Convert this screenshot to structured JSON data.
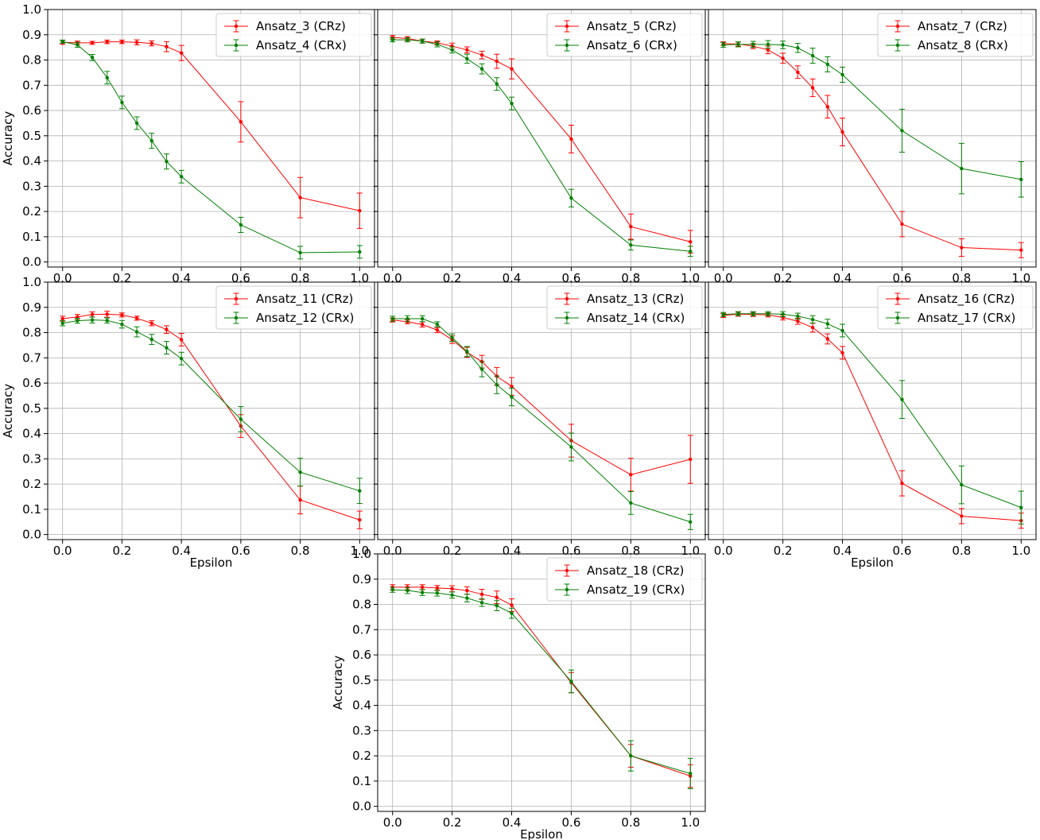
{
  "figure": {
    "x_axis": {
      "ticks": [
        0.0,
        0.2,
        0.4,
        0.6,
        0.8,
        1.0
      ],
      "tick_labels": [
        "0.0",
        "0.2",
        "0.4",
        "0.6",
        "0.8",
        "1.0"
      ]
    },
    "y_axis": {
      "ticks": [
        0.0,
        0.1,
        0.2,
        0.3,
        0.4,
        0.5,
        0.6,
        0.7,
        0.8,
        0.9,
        1.0
      ],
      "tick_labels": [
        "0.0",
        "0.1",
        "0.2",
        "0.3",
        "0.4",
        "0.5",
        "0.6",
        "0.7",
        "0.8",
        "0.9",
        "1.0"
      ]
    },
    "colors": {
      "crz": "#ff0000",
      "crx": "#008000",
      "grid": "#b0b0b0"
    }
  },
  "chart_data": [
    {
      "type": "line",
      "xlabel": "",
      "ylabel": "Accuracy",
      "xlim": [
        -0.05,
        1.05
      ],
      "ylim": [
        -0.02,
        1.0
      ],
      "grid": true,
      "legend": "top-right",
      "show_x_ticklabels": true,
      "show_y_ticklabels": true,
      "x": [
        0.0,
        0.05,
        0.1,
        0.15,
        0.2,
        0.25,
        0.3,
        0.35,
        0.4,
        0.6,
        0.8,
        1.0
      ],
      "series": [
        {
          "name": "Ansatz_3 (CRz)",
          "color": "red",
          "values": [
            0.87,
            0.868,
            0.868,
            0.872,
            0.872,
            0.87,
            0.866,
            0.853,
            0.828,
            0.555,
            0.255,
            0.203
          ],
          "errors": [
            0.008,
            0.007,
            0.006,
            0.007,
            0.007,
            0.01,
            0.01,
            0.02,
            0.03,
            0.08,
            0.08,
            0.07
          ]
        },
        {
          "name": "Ansatz_4 (CRx)",
          "color": "green",
          "values": [
            0.873,
            0.86,
            0.81,
            0.73,
            0.632,
            0.55,
            0.48,
            0.398,
            0.338,
            0.147,
            0.037,
            0.04
          ],
          "errors": [
            0.006,
            0.01,
            0.012,
            0.025,
            0.025,
            0.025,
            0.03,
            0.03,
            0.025,
            0.03,
            0.025,
            0.025
          ]
        }
      ]
    },
    {
      "type": "line",
      "xlabel": "",
      "ylabel": "",
      "xlim": [
        -0.05,
        1.05
      ],
      "ylim": [
        -0.02,
        1.0
      ],
      "grid": true,
      "legend": "top-right",
      "show_x_ticklabels": true,
      "show_y_ticklabels": false,
      "x": [
        0.0,
        0.05,
        0.1,
        0.15,
        0.2,
        0.25,
        0.3,
        0.35,
        0.4,
        0.6,
        0.8,
        1.0
      ],
      "series": [
        {
          "name": "Ansatz_5 (CRz)",
          "color": "red",
          "values": [
            0.89,
            0.885,
            0.875,
            0.868,
            0.855,
            0.84,
            0.82,
            0.795,
            0.765,
            0.487,
            0.14,
            0.08
          ],
          "errors": [
            0.007,
            0.008,
            0.008,
            0.008,
            0.012,
            0.012,
            0.015,
            0.028,
            0.04,
            0.055,
            0.05,
            0.045
          ]
        },
        {
          "name": "Ansatz_6 (CRx)",
          "color": "green",
          "values": [
            0.88,
            0.88,
            0.875,
            0.862,
            0.84,
            0.805,
            0.765,
            0.705,
            0.628,
            0.253,
            0.067,
            0.042
          ],
          "errors": [
            0.008,
            0.008,
            0.008,
            0.01,
            0.012,
            0.018,
            0.02,
            0.025,
            0.025,
            0.035,
            0.02,
            0.02
          ]
        }
      ]
    },
    {
      "type": "line",
      "xlabel": "",
      "ylabel": "",
      "xlim": [
        -0.05,
        1.05
      ],
      "ylim": [
        -0.02,
        1.0
      ],
      "grid": true,
      "legend": "top-right",
      "show_x_ticklabels": true,
      "show_y_ticklabels": false,
      "x": [
        0.0,
        0.05,
        0.1,
        0.15,
        0.2,
        0.25,
        0.3,
        0.35,
        0.4,
        0.6,
        0.8,
        1.0
      ],
      "series": [
        {
          "name": "Ansatz_7 (CRz)",
          "color": "red",
          "values": [
            0.865,
            0.863,
            0.855,
            0.84,
            0.807,
            0.752,
            0.69,
            0.615,
            0.515,
            0.15,
            0.057,
            0.047
          ],
          "errors": [
            0.007,
            0.008,
            0.01,
            0.015,
            0.02,
            0.025,
            0.035,
            0.045,
            0.055,
            0.05,
            0.035,
            0.03
          ]
        },
        {
          "name": "Ansatz_8 (CRx)",
          "color": "green",
          "values": [
            0.86,
            0.862,
            0.862,
            0.862,
            0.86,
            0.848,
            0.817,
            0.783,
            0.742,
            0.52,
            0.37,
            0.327
          ],
          "errors": [
            0.01,
            0.01,
            0.012,
            0.015,
            0.015,
            0.018,
            0.03,
            0.03,
            0.03,
            0.085,
            0.1,
            0.07
          ]
        }
      ]
    },
    {
      "type": "line",
      "xlabel": "Epsilon",
      "ylabel": "Accuracy",
      "xlim": [
        -0.05,
        1.05
      ],
      "ylim": [
        -0.02,
        1.0
      ],
      "grid": true,
      "legend": "top-right",
      "show_x_ticklabels": true,
      "show_y_ticklabels": true,
      "x": [
        0.0,
        0.05,
        0.1,
        0.15,
        0.2,
        0.25,
        0.3,
        0.35,
        0.4,
        0.6,
        0.8,
        1.0
      ],
      "series": [
        {
          "name": "Ansatz_11 (CRz)",
          "color": "red",
          "values": [
            0.855,
            0.862,
            0.872,
            0.873,
            0.87,
            0.857,
            0.837,
            0.812,
            0.772,
            0.43,
            0.137,
            0.058
          ],
          "errors": [
            0.01,
            0.01,
            0.01,
            0.012,
            0.008,
            0.008,
            0.01,
            0.015,
            0.025,
            0.045,
            0.055,
            0.035
          ]
        },
        {
          "name": "Ansatz_12 (CRx)",
          "color": "green",
          "values": [
            0.837,
            0.847,
            0.85,
            0.848,
            0.833,
            0.803,
            0.773,
            0.74,
            0.697,
            0.457,
            0.247,
            0.173
          ],
          "errors": [
            0.01,
            0.01,
            0.012,
            0.01,
            0.015,
            0.02,
            0.02,
            0.025,
            0.025,
            0.05,
            0.055,
            0.05
          ]
        }
      ]
    },
    {
      "type": "line",
      "xlabel": "",
      "ylabel": "",
      "xlim": [
        -0.05,
        1.05
      ],
      "ylim": [
        -0.02,
        1.0
      ],
      "grid": true,
      "legend": "top-right",
      "show_x_ticklabels": true,
      "show_y_ticklabels": false,
      "x": [
        0.0,
        0.05,
        0.1,
        0.15,
        0.2,
        0.25,
        0.3,
        0.35,
        0.4,
        0.6,
        0.8,
        1.0
      ],
      "series": [
        {
          "name": "Ansatz_13 (CRz)",
          "color": "red",
          "values": [
            0.85,
            0.843,
            0.832,
            0.81,
            0.772,
            0.722,
            0.685,
            0.627,
            0.587,
            0.372,
            0.237,
            0.298
          ],
          "errors": [
            0.008,
            0.008,
            0.01,
            0.01,
            0.015,
            0.02,
            0.025,
            0.035,
            0.035,
            0.065,
            0.065,
            0.095
          ]
        },
        {
          "name": "Ansatz_14 (CRx)",
          "color": "green",
          "values": [
            0.855,
            0.855,
            0.855,
            0.833,
            0.78,
            0.725,
            0.655,
            0.593,
            0.545,
            0.347,
            0.125,
            0.05
          ],
          "errors": [
            0.01,
            0.012,
            0.012,
            0.01,
            0.015,
            0.02,
            0.03,
            0.035,
            0.035,
            0.055,
            0.045,
            0.03
          ]
        }
      ]
    },
    {
      "type": "line",
      "xlabel": "Epsilon",
      "ylabel": "",
      "xlim": [
        -0.05,
        1.05
      ],
      "ylim": [
        -0.02,
        1.0
      ],
      "grid": true,
      "legend": "top-right",
      "show_x_ticklabels": true,
      "show_y_ticklabels": false,
      "x": [
        0.0,
        0.05,
        0.1,
        0.15,
        0.2,
        0.25,
        0.3,
        0.35,
        0.4,
        0.6,
        0.8,
        1.0
      ],
      "series": [
        {
          "name": "Ansatz_16 (CRz)",
          "color": "red",
          "values": [
            0.868,
            0.873,
            0.872,
            0.87,
            0.86,
            0.845,
            0.82,
            0.775,
            0.72,
            0.203,
            0.073,
            0.055
          ],
          "errors": [
            0.008,
            0.008,
            0.008,
            0.008,
            0.01,
            0.012,
            0.018,
            0.02,
            0.025,
            0.05,
            0.03,
            0.03
          ]
        },
        {
          "name": "Ansatz_17 (CRx)",
          "color": "green",
          "values": [
            0.872,
            0.875,
            0.875,
            0.875,
            0.873,
            0.865,
            0.852,
            0.835,
            0.808,
            0.535,
            0.197,
            0.107
          ],
          "errors": [
            0.008,
            0.008,
            0.008,
            0.008,
            0.01,
            0.012,
            0.015,
            0.018,
            0.025,
            0.075,
            0.075,
            0.065
          ]
        }
      ]
    },
    {
      "type": "line",
      "xlabel": "Epsilon",
      "ylabel": "Accuracy",
      "xlim": [
        -0.05,
        1.05
      ],
      "ylim": [
        -0.02,
        1.0
      ],
      "grid": true,
      "legend": "top-right",
      "show_x_ticklabels": true,
      "show_y_ticklabels": true,
      "x": [
        0.0,
        0.05,
        0.1,
        0.15,
        0.2,
        0.25,
        0.3,
        0.35,
        0.4,
        0.6,
        0.8,
        1.0
      ],
      "series": [
        {
          "name": "Ansatz_18 (CRz)",
          "color": "red",
          "values": [
            0.868,
            0.868,
            0.868,
            0.865,
            0.862,
            0.855,
            0.84,
            0.828,
            0.797,
            0.49,
            0.2,
            0.12
          ],
          "errors": [
            0.01,
            0.01,
            0.01,
            0.01,
            0.012,
            0.015,
            0.02,
            0.025,
            0.025,
            0.04,
            0.045,
            0.045
          ]
        },
        {
          "name": "Ansatz_19 (CRx)",
          "color": "green",
          "values": [
            0.858,
            0.855,
            0.847,
            0.845,
            0.837,
            0.825,
            0.807,
            0.795,
            0.765,
            0.495,
            0.2,
            0.13
          ],
          "errors": [
            0.01,
            0.012,
            0.012,
            0.012,
            0.012,
            0.015,
            0.015,
            0.02,
            0.02,
            0.045,
            0.06,
            0.06
          ]
        }
      ]
    }
  ]
}
